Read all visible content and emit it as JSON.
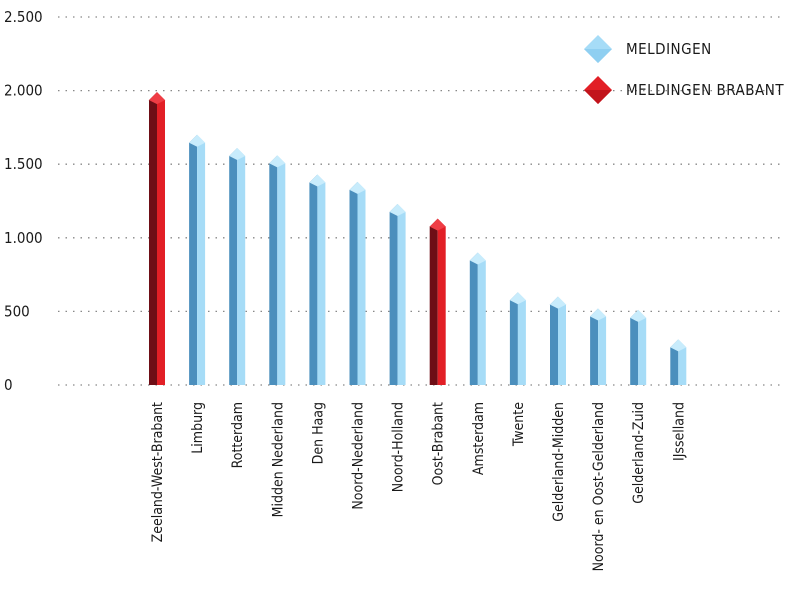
{
  "chart_data": {
    "type": "bar",
    "title": "",
    "xlabel": "",
    "ylabel": "",
    "ylim": [
      0,
      2500
    ],
    "y_ticks": [
      0,
      500,
      1000,
      1500,
      2000,
      2500
    ],
    "y_tick_labels": [
      "0",
      "500",
      "1.000",
      "1.500",
      "2.000",
      "2.500"
    ],
    "grid": true,
    "legend_position": "top-right",
    "categories": [
      "Zeeland-West-Brabant",
      "Limburg",
      "Rotterdam",
      "Midden Nederland",
      "Den Haag",
      "Noord-Nederland",
      "Noord-Holland",
      "Oost-Brabant",
      "Amsterdam",
      "Twente",
      "Gelderland-Midden",
      "Noord- en Oost-Gelderland",
      "Gelderland-Zuid",
      "IJsselland"
    ],
    "values": [
      1990,
      1700,
      1610,
      1560,
      1430,
      1380,
      1230,
      1130,
      900,
      630,
      600,
      520,
      510,
      310
    ],
    "groups": [
      "brabant",
      "default",
      "default",
      "default",
      "default",
      "default",
      "default",
      "brabant",
      "default",
      "default",
      "default",
      "default",
      "default",
      "default"
    ],
    "series": [
      {
        "name": "MELDINGEN",
        "key": "default"
      },
      {
        "name": "MELDINGEN BRABANT",
        "key": "brabant"
      }
    ]
  },
  "colors": {
    "default": {
      "light": "#a6dcf7",
      "dark": "#4b8fbd",
      "top": "#c8ecfc"
    },
    "brabant": {
      "light": "#e21f26",
      "dark": "#6e0e16",
      "top": "#ef3d45"
    },
    "text": "#1a1a1a",
    "grid": "#888888"
  }
}
